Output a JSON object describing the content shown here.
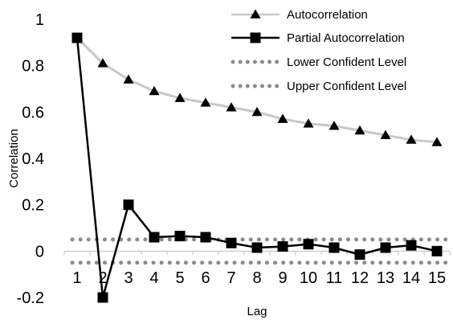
{
  "chart_data": {
    "type": "line",
    "title": "",
    "xlabel": "Lag",
    "ylabel": "Correlation",
    "x": [
      1,
      2,
      3,
      4,
      5,
      6,
      7,
      8,
      9,
      10,
      11,
      12,
      13,
      14,
      15
    ],
    "ylim": [
      -0.2,
      1
    ],
    "yticks": [
      "-0.2",
      "0",
      "0.2",
      "0.4",
      "0.6",
      "0.8",
      "1"
    ],
    "grid": false,
    "legend_position": "top-right",
    "series": [
      {
        "name": "Autocorrelation",
        "marker": "triangle",
        "color": "#c8c8c8",
        "values": [
          0.92,
          0.81,
          0.74,
          0.69,
          0.66,
          0.64,
          0.62,
          0.6,
          0.57,
          0.55,
          0.54,
          0.52,
          0.5,
          0.48,
          0.47
        ]
      },
      {
        "name": "Partial Autocorrelation",
        "marker": "square",
        "color": "#000000",
        "values": [
          0.92,
          -0.2,
          0.2,
          0.06,
          0.065,
          0.06,
          0.035,
          0.015,
          0.02,
          0.03,
          0.015,
          -0.015,
          0.015,
          0.025,
          0.0
        ]
      },
      {
        "name": "Lower Confident Level",
        "marker": "none",
        "style": "dotted",
        "color": "#8c8c8c",
        "values": [
          -0.05,
          -0.05,
          -0.05,
          -0.05,
          -0.05,
          -0.05,
          -0.05,
          -0.05,
          -0.05,
          -0.05,
          -0.05,
          -0.05,
          -0.05,
          -0.05,
          -0.05
        ]
      },
      {
        "name": "Upper Confident Level",
        "marker": "none",
        "style": "dotted",
        "color": "#8c8c8c",
        "values": [
          0.05,
          0.05,
          0.05,
          0.05,
          0.05,
          0.05,
          0.05,
          0.05,
          0.05,
          0.05,
          0.05,
          0.05,
          0.05,
          0.05,
          0.05
        ]
      }
    ]
  }
}
